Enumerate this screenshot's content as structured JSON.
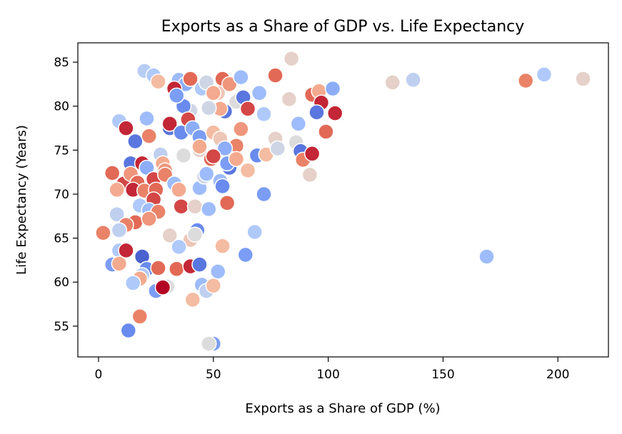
{
  "chart_data": {
    "type": "scatter",
    "title": "Exports as a Share of GDP vs. Life Expectancy",
    "xlabel": "Exports as a Share of GDP (%)",
    "ylabel": "Life Expectancy (Years)",
    "xlim": [
      -9,
      222
    ],
    "ylim": [
      51.5,
      87.2
    ],
    "xticks": [
      0,
      50,
      100,
      150,
      200
    ],
    "xtick_labels": [
      "0",
      "50",
      "100",
      "150",
      "200"
    ],
    "yticks": [
      55,
      60,
      65,
      70,
      75,
      80,
      85
    ],
    "ytick_labels": [
      "55",
      "60",
      "65",
      "70",
      "75",
      "80",
      "85"
    ],
    "grid": false,
    "legend": "none",
    "colormap": "coolwarm",
    "colormap_stops": [
      "#3b4cc0",
      "#6f92f3",
      "#aac7fd",
      "#dddcdc",
      "#f7b89c",
      "#e7745b",
      "#b40426"
    ],
    "points": [
      {
        "x": 20,
        "y": 84,
        "c": 0.38
      },
      {
        "x": 24,
        "y": 83.5,
        "c": 0.35
      },
      {
        "x": 35,
        "y": 83,
        "c": 0.3
      },
      {
        "x": 38,
        "y": 82.5,
        "c": 0.25
      },
      {
        "x": 45,
        "y": 82,
        "c": 0.35
      },
      {
        "x": 33,
        "y": 82,
        "c": 0.95
      },
      {
        "x": 40,
        "y": 83.1,
        "c": 0.85
      },
      {
        "x": 26,
        "y": 82.8,
        "c": 0.65
      },
      {
        "x": 54,
        "y": 83.1,
        "c": 0.85
      },
      {
        "x": 47,
        "y": 82.7,
        "c": 0.45
      },
      {
        "x": 52,
        "y": 81.5,
        "c": 0.6
      },
      {
        "x": 57,
        "y": 82.5,
        "c": 0.75
      },
      {
        "x": 62,
        "y": 83.3,
        "c": 0.3
      },
      {
        "x": 50,
        "y": 81.5,
        "c": 0.7
      },
      {
        "x": 60,
        "y": 80.5,
        "c": 0.5
      },
      {
        "x": 63,
        "y": 81,
        "c": 0.1
      },
      {
        "x": 70,
        "y": 81.5,
        "c": 0.3
      },
      {
        "x": 77,
        "y": 83.5,
        "c": 0.85
      },
      {
        "x": 84,
        "y": 85.4,
        "c": 0.55
      },
      {
        "x": 83,
        "y": 80.8,
        "c": 0.55
      },
      {
        "x": 72,
        "y": 79.1,
        "c": 0.35
      },
      {
        "x": 65,
        "y": 79.7,
        "c": 0.9
      },
      {
        "x": 55,
        "y": 79.4,
        "c": 0.1
      },
      {
        "x": 53,
        "y": 79.7,
        "c": 0.7
      },
      {
        "x": 48,
        "y": 79.8,
        "c": 0.45
      },
      {
        "x": 40,
        "y": 79.5,
        "c": 0.45
      },
      {
        "x": 37,
        "y": 80,
        "c": 0.15
      },
      {
        "x": 34,
        "y": 81.2,
        "c": 0.2
      },
      {
        "x": 21,
        "y": 78.6,
        "c": 0.3
      },
      {
        "x": 9,
        "y": 78.3,
        "c": 0.35
      },
      {
        "x": 31,
        "y": 77.5,
        "c": 0.1
      },
      {
        "x": 31,
        "y": 78,
        "c": 0.95
      },
      {
        "x": 39,
        "y": 78.5,
        "c": 0.9
      },
      {
        "x": 36,
        "y": 77,
        "c": 0.15
      },
      {
        "x": 41,
        "y": 77.5,
        "c": 0.25
      },
      {
        "x": 44,
        "y": 76.5,
        "c": 0.2
      },
      {
        "x": 12,
        "y": 77.5,
        "c": 0.95
      },
      {
        "x": 16,
        "y": 76,
        "c": 0.1
      },
      {
        "x": 22,
        "y": 76.6,
        "c": 0.8
      },
      {
        "x": 27,
        "y": 74.5,
        "c": 0.4
      },
      {
        "x": 37,
        "y": 74.4,
        "c": 0.5
      },
      {
        "x": 44,
        "y": 75,
        "c": 0.55
      },
      {
        "x": 50,
        "y": 77,
        "c": 0.65
      },
      {
        "x": 53,
        "y": 76.3,
        "c": 0.6
      },
      {
        "x": 60,
        "y": 75.5,
        "c": 0.8
      },
      {
        "x": 62,
        "y": 77.4,
        "c": 0.75
      },
      {
        "x": 58,
        "y": 74,
        "c": 0.65
      },
      {
        "x": 49,
        "y": 74,
        "c": 0.85
      },
      {
        "x": 44,
        "y": 75.4,
        "c": 0.7
      },
      {
        "x": 57,
        "y": 73,
        "c": 0.1
      },
      {
        "x": 55,
        "y": 75.2,
        "c": 0.25
      },
      {
        "x": 69,
        "y": 74.4,
        "c": 0.15
      },
      {
        "x": 73,
        "y": 74.5,
        "c": 0.65
      },
      {
        "x": 77,
        "y": 76.3,
        "c": 0.55
      },
      {
        "x": 78,
        "y": 75.2,
        "c": 0.45
      },
      {
        "x": 86,
        "y": 75.9,
        "c": 0.5
      },
      {
        "x": 87,
        "y": 78,
        "c": 0.3
      },
      {
        "x": 88,
        "y": 74.9,
        "c": 0.1
      },
      {
        "x": 89,
        "y": 73.9,
        "c": 0.8
      },
      {
        "x": 93,
        "y": 74.6,
        "c": 0.95
      },
      {
        "x": 92,
        "y": 72.2,
        "c": 0.55
      },
      {
        "x": 93,
        "y": 81.3,
        "c": 0.85
      },
      {
        "x": 96,
        "y": 81.7,
        "c": 0.7
      },
      {
        "x": 97,
        "y": 80.4,
        "c": 0.95
      },
      {
        "x": 95,
        "y": 79.3,
        "c": 0.1
      },
      {
        "x": 102,
        "y": 82,
        "c": 0.25
      },
      {
        "x": 103,
        "y": 79.2,
        "c": 0.95
      },
      {
        "x": 99,
        "y": 77.1,
        "c": 0.85
      },
      {
        "x": 128,
        "y": 82.7,
        "c": 0.55
      },
      {
        "x": 137,
        "y": 83,
        "c": 0.4
      },
      {
        "x": 186,
        "y": 82.9,
        "c": 0.8
      },
      {
        "x": 194,
        "y": 83.6,
        "c": 0.35
      },
      {
        "x": 211,
        "y": 83.1,
        "c": 0.55
      },
      {
        "x": 169,
        "y": 62.9,
        "c": 0.3
      },
      {
        "x": 14,
        "y": 73.5,
        "c": 0.1
      },
      {
        "x": 19,
        "y": 73.5,
        "c": 0.95
      },
      {
        "x": 21,
        "y": 73,
        "c": 0.25
      },
      {
        "x": 6,
        "y": 72.4,
        "c": 0.85
      },
      {
        "x": 11,
        "y": 71.2,
        "c": 0.9
      },
      {
        "x": 14,
        "y": 72.3,
        "c": 0.75
      },
      {
        "x": 17,
        "y": 71.3,
        "c": 0.85
      },
      {
        "x": 24,
        "y": 71.7,
        "c": 0.9
      },
      {
        "x": 28,
        "y": 73.5,
        "c": 0.7
      },
      {
        "x": 29,
        "y": 72.7,
        "c": 0.75
      },
      {
        "x": 29,
        "y": 72.2,
        "c": 0.8
      },
      {
        "x": 8,
        "y": 70.5,
        "c": 0.7
      },
      {
        "x": 15,
        "y": 70.5,
        "c": 0.95
      },
      {
        "x": 20,
        "y": 70.4,
        "c": 0.8
      },
      {
        "x": 25,
        "y": 70.5,
        "c": 0.85
      },
      {
        "x": 33,
        "y": 71.2,
        "c": 0.3
      },
      {
        "x": 35,
        "y": 70.5,
        "c": 0.7
      },
      {
        "x": 44,
        "y": 70.7,
        "c": 0.3
      },
      {
        "x": 46,
        "y": 72,
        "c": 0.45
      },
      {
        "x": 47,
        "y": 72.3,
        "c": 0.3
      },
      {
        "x": 50,
        "y": 74.3,
        "c": 0.9
      },
      {
        "x": 53,
        "y": 71.5,
        "c": 0.3
      },
      {
        "x": 54,
        "y": 70.9,
        "c": 0.15
      },
      {
        "x": 56,
        "y": 73.5,
        "c": 0.2
      },
      {
        "x": 60,
        "y": 74,
        "c": 0.7
      },
      {
        "x": 65,
        "y": 72.7,
        "c": 0.65
      },
      {
        "x": 72,
        "y": 70,
        "c": 0.2
      },
      {
        "x": 24,
        "y": 69.4,
        "c": 0.9
      },
      {
        "x": 18,
        "y": 68.7,
        "c": 0.35
      },
      {
        "x": 22,
        "y": 68.2,
        "c": 0.3
      },
      {
        "x": 26,
        "y": 68,
        "c": 0.8
      },
      {
        "x": 36,
        "y": 68.6,
        "c": 0.9
      },
      {
        "x": 42,
        "y": 68.6,
        "c": 0.55
      },
      {
        "x": 48,
        "y": 68.3,
        "c": 0.3
      },
      {
        "x": 56,
        "y": 69,
        "c": 0.85
      },
      {
        "x": 8,
        "y": 67.7,
        "c": 0.4
      },
      {
        "x": 16,
        "y": 66.8,
        "c": 0.85
      },
      {
        "x": 12,
        "y": 66.5,
        "c": 0.8
      },
      {
        "x": 22,
        "y": 67.2,
        "c": 0.75
      },
      {
        "x": 9,
        "y": 65.9,
        "c": 0.4
      },
      {
        "x": 2,
        "y": 65.6,
        "c": 0.8
      },
      {
        "x": 31,
        "y": 65.3,
        "c": 0.55
      },
      {
        "x": 40,
        "y": 64.8,
        "c": 0.6
      },
      {
        "x": 43,
        "y": 65.9,
        "c": 0.15
      },
      {
        "x": 42,
        "y": 65.4,
        "c": 0.5
      },
      {
        "x": 68,
        "y": 65.7,
        "c": 0.35
      },
      {
        "x": 9,
        "y": 63.6,
        "c": 0.35
      },
      {
        "x": 12,
        "y": 63.6,
        "c": 0.95
      },
      {
        "x": 35,
        "y": 64,
        "c": 0.35
      },
      {
        "x": 54,
        "y": 64.1,
        "c": 0.65
      },
      {
        "x": 64,
        "y": 63.1,
        "c": 0.2
      },
      {
        "x": 19,
        "y": 62.9,
        "c": 0.05
      },
      {
        "x": 6,
        "y": 62,
        "c": 0.2
      },
      {
        "x": 9,
        "y": 62.1,
        "c": 0.7
      },
      {
        "x": 21,
        "y": 61.5,
        "c": 0.15
      },
      {
        "x": 26,
        "y": 61.6,
        "c": 0.85
      },
      {
        "x": 34,
        "y": 61.5,
        "c": 0.85
      },
      {
        "x": 40,
        "y": 61.8,
        "c": 0.95
      },
      {
        "x": 44,
        "y": 62,
        "c": 0.1
      },
      {
        "x": 52,
        "y": 61.2,
        "c": 0.3
      },
      {
        "x": 19,
        "y": 60.8,
        "c": 0.35
      },
      {
        "x": 18,
        "y": 60.4,
        "c": 0.7
      },
      {
        "x": 15,
        "y": 59.9,
        "c": 0.35
      },
      {
        "x": 25,
        "y": 59,
        "c": 0.2
      },
      {
        "x": 30,
        "y": 59.5,
        "c": 0.5
      },
      {
        "x": 28,
        "y": 59.4,
        "c": 1.0
      },
      {
        "x": 45,
        "y": 59.7,
        "c": 0.3
      },
      {
        "x": 47,
        "y": 59,
        "c": 0.4
      },
      {
        "x": 50,
        "y": 59.6,
        "c": 0.65
      },
      {
        "x": 41,
        "y": 58,
        "c": 0.65
      },
      {
        "x": 18,
        "y": 56.1,
        "c": 0.8
      },
      {
        "x": 13,
        "y": 54.5,
        "c": 0.15
      },
      {
        "x": 50,
        "y": 53,
        "c": 0.2
      },
      {
        "x": 48,
        "y": 53,
        "c": 0.5
      }
    ]
  }
}
